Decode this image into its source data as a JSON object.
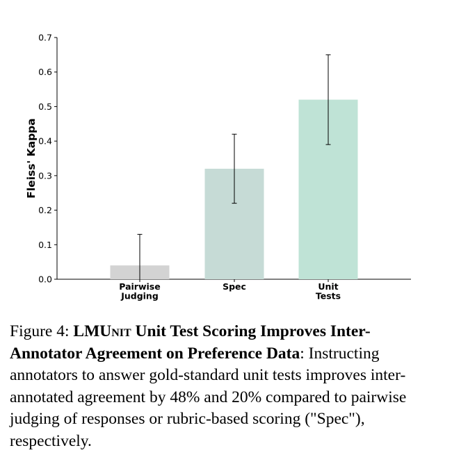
{
  "chart_data": {
    "type": "bar",
    "categories": [
      "Pairwise\nJudging",
      "Spec",
      "Unit\nTests"
    ],
    "values": [
      0.04,
      0.32,
      0.52
    ],
    "errors": [
      0.09,
      0.1,
      0.13
    ],
    "colors": [
      "#d3d3d3",
      "#c6dbd6",
      "#bfe3d6"
    ],
    "ylabel": "Fleiss' Kappa",
    "xlabel": "",
    "ylim": [
      0,
      0.7
    ],
    "yticks": [
      0.0,
      0.1,
      0.2,
      0.3,
      0.4,
      0.5,
      0.6,
      0.7
    ],
    "grid": false
  },
  "caption": {
    "prefix": "Figure 4: ",
    "lm": "LMU",
    "nit": "nit",
    "bold_rest": " Unit Test Scoring Improves Inter-Annotator Agreement on Preference Data",
    "body": ": Instructing annotators to answer gold-standard unit tests improves inter-annotated agreement by 48% and 20% compared to pairwise judging of responses or rubric-based scoring (\"Spec\"), respectively."
  }
}
